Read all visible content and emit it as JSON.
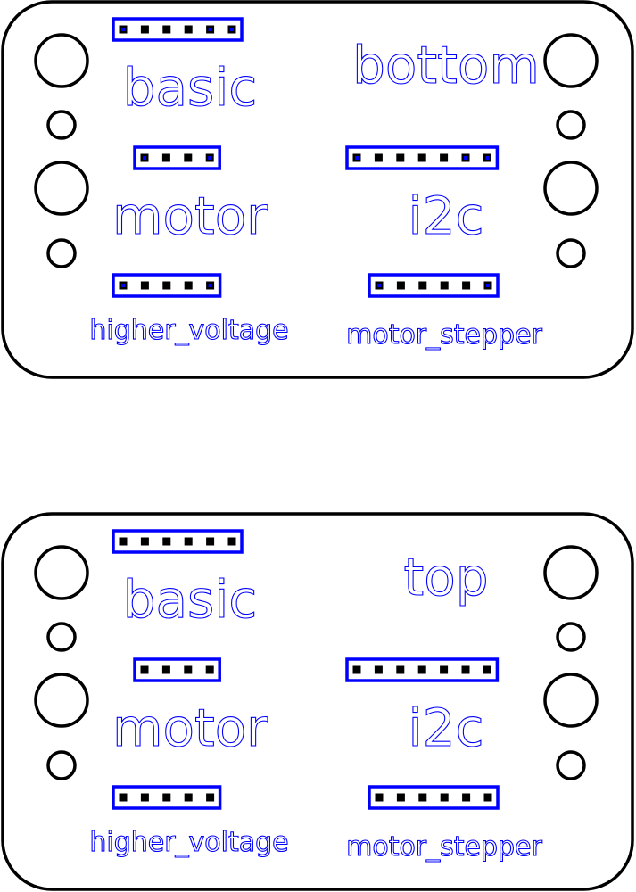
{
  "colors": {
    "outline": "#000000",
    "silk": "#0000ff",
    "background": "#ffffff"
  },
  "panels": [
    {
      "side": "bottom",
      "labels": {
        "side": "bottom",
        "basic": "basic",
        "motor": "motor",
        "i2c": "i2c",
        "higher_voltage": "higher_voltage",
        "motor_stepper": "motor_stepper"
      },
      "headers": {
        "basic": {
          "pins": 6
        },
        "motor": {
          "pins": 4
        },
        "i2c": {
          "pins": 7
        },
        "higher_voltage": {
          "pins": 5
        },
        "motor_stepper": {
          "pins": 6
        }
      }
    },
    {
      "side": "top",
      "labels": {
        "side": "top",
        "basic": "basic",
        "motor": "motor",
        "i2c": "i2c",
        "higher_voltage": "higher_voltage",
        "motor_stepper": "motor_stepper"
      },
      "headers": {
        "basic": {
          "pins": 6
        },
        "motor": {
          "pins": 4
        },
        "i2c": {
          "pins": 7
        },
        "higher_voltage": {
          "pins": 5
        },
        "motor_stepper": {
          "pins": 6
        }
      }
    }
  ]
}
